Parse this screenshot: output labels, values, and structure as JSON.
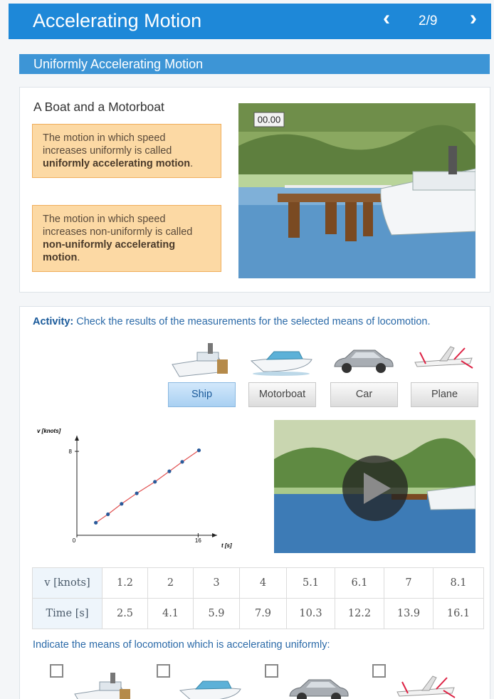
{
  "header": {
    "title": "Accelerating Motion",
    "page": "2/9"
  },
  "section_title": "Uniformly Accelerating Motion",
  "intro": {
    "heading": "A Boat and a Motorboat",
    "timer": "00.00",
    "definitions": [
      {
        "before": "The motion in which speed increases uniformly is called",
        "term": "uniformly accelerating motion",
        "after": "."
      },
      {
        "before": "The motion in which speed increases non-uniformly is called",
        "term": "non-uniformly accelerating motion",
        "after": "."
      }
    ]
  },
  "activity": {
    "label": "Activity:",
    "text": "Check the results of the measurements for the selected means of locomotion.",
    "options": [
      "Ship",
      "Motorboat",
      "Car",
      "Plane"
    ]
  },
  "graph": {
    "y_label": "v [knots]",
    "x_label": "t [s]",
    "xlim": [
      0,
      18.5
    ],
    "ylim": [
      0,
      9.5
    ],
    "xticks": [
      0,
      16
    ],
    "yticks": [
      8
    ]
  },
  "table": {
    "rows": [
      [
        "v [knots]",
        1.2,
        2,
        3,
        4,
        5.1,
        6.1,
        7,
        8.1
      ],
      [
        "Time [s]",
        2.5,
        4.1,
        5.9,
        7.9,
        10.3,
        12.2,
        13.9,
        16.1
      ]
    ]
  },
  "question": "Indicate the means of locomotion which is accelerating uniformly:"
}
